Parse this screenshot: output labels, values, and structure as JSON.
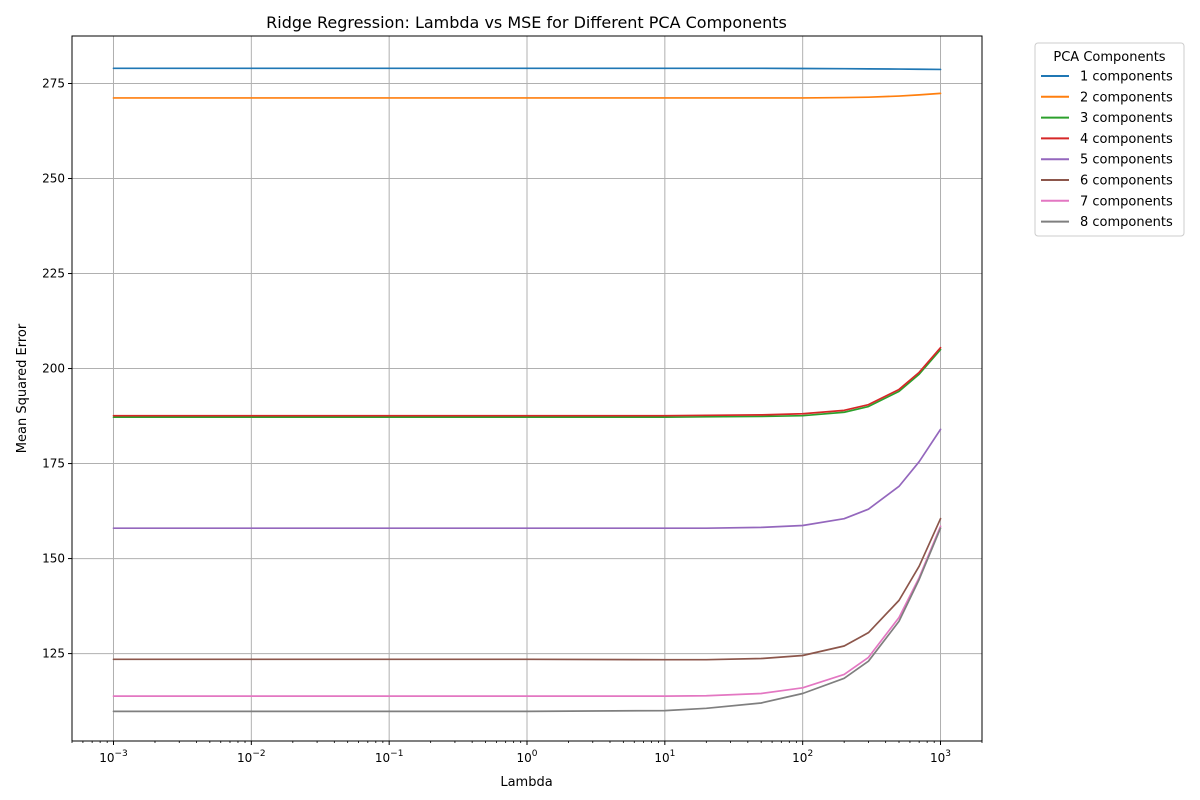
{
  "chart_data": {
    "type": "line",
    "title": "Ridge Regression: Lambda vs MSE for Different PCA Components",
    "xlabel": "Lambda",
    "ylabel": "Mean Squared Error",
    "xscale": "log",
    "xlim": [
      0.0005,
      2000
    ],
    "ylim": [
      102,
      287.5
    ],
    "x_ticks": [
      {
        "value": 0.001,
        "base": "10",
        "exp": "−3"
      },
      {
        "value": 0.01,
        "base": "10",
        "exp": "−2"
      },
      {
        "value": 0.1,
        "base": "10",
        "exp": "−1"
      },
      {
        "value": 1,
        "base": "10",
        "exp": "0"
      },
      {
        "value": 10,
        "base": "10",
        "exp": "1"
      },
      {
        "value": 100,
        "base": "10",
        "exp": "2"
      },
      {
        "value": 1000,
        "base": "10",
        "exp": "3"
      }
    ],
    "y_ticks": [
      {
        "value": 125,
        "label": "125"
      },
      {
        "value": 150,
        "label": "150"
      },
      {
        "value": 175,
        "label": "175"
      },
      {
        "value": 200,
        "label": "200"
      },
      {
        "value": 225,
        "label": "225"
      },
      {
        "value": 250,
        "label": "250"
      },
      {
        "value": 275,
        "label": "275"
      }
    ],
    "grid": true,
    "legend": {
      "title": "PCA Components",
      "position": "outside-top-right"
    },
    "x": [
      0.001,
      0.01,
      0.1,
      1,
      10,
      20,
      50,
      100,
      200,
      300,
      500,
      700,
      1000
    ],
    "series": [
      {
        "name": "1 components",
        "color": "#1f77b4",
        "values": [
          279.0,
          279.0,
          279.0,
          279.0,
          279.0,
          279.0,
          279.0,
          278.95,
          278.9,
          278.85,
          278.8,
          278.75,
          278.7
        ]
      },
      {
        "name": "2 components",
        "color": "#ff7f0e",
        "values": [
          271.2,
          271.2,
          271.2,
          271.2,
          271.2,
          271.2,
          271.2,
          271.2,
          271.3,
          271.4,
          271.7,
          272.0,
          272.4
        ]
      },
      {
        "name": "3 components",
        "color": "#2ca02c",
        "values": [
          187.2,
          187.2,
          187.2,
          187.2,
          187.2,
          187.3,
          187.4,
          187.6,
          188.5,
          190.0,
          194.0,
          198.5,
          205.0
        ]
      },
      {
        "name": "4 components",
        "color": "#d62728",
        "values": [
          187.6,
          187.6,
          187.6,
          187.6,
          187.6,
          187.7,
          187.8,
          188.1,
          189.0,
          190.5,
          194.5,
          199.0,
          205.5
        ]
      },
      {
        "name": "5 components",
        "color": "#9467bd",
        "values": [
          158.0,
          158.0,
          158.0,
          158.0,
          158.0,
          158.0,
          158.2,
          158.7,
          160.5,
          163.0,
          169.0,
          175.5,
          184.0
        ]
      },
      {
        "name": "6 components",
        "color": "#8c564b",
        "values": [
          123.5,
          123.5,
          123.5,
          123.5,
          123.4,
          123.4,
          123.7,
          124.5,
          127.0,
          130.5,
          139.0,
          148.0,
          160.5
        ]
      },
      {
        "name": "7 components",
        "color": "#e377c2",
        "values": [
          113.8,
          113.8,
          113.8,
          113.8,
          113.8,
          113.9,
          114.5,
          116.0,
          119.5,
          124.0,
          134.5,
          145.0,
          158.5
        ]
      },
      {
        "name": "8 components",
        "color": "#7f7f7f",
        "values": [
          109.8,
          109.8,
          109.8,
          109.8,
          110.0,
          110.6,
          112.0,
          114.5,
          118.5,
          123.0,
          133.5,
          144.5,
          158.0
        ]
      }
    ]
  }
}
